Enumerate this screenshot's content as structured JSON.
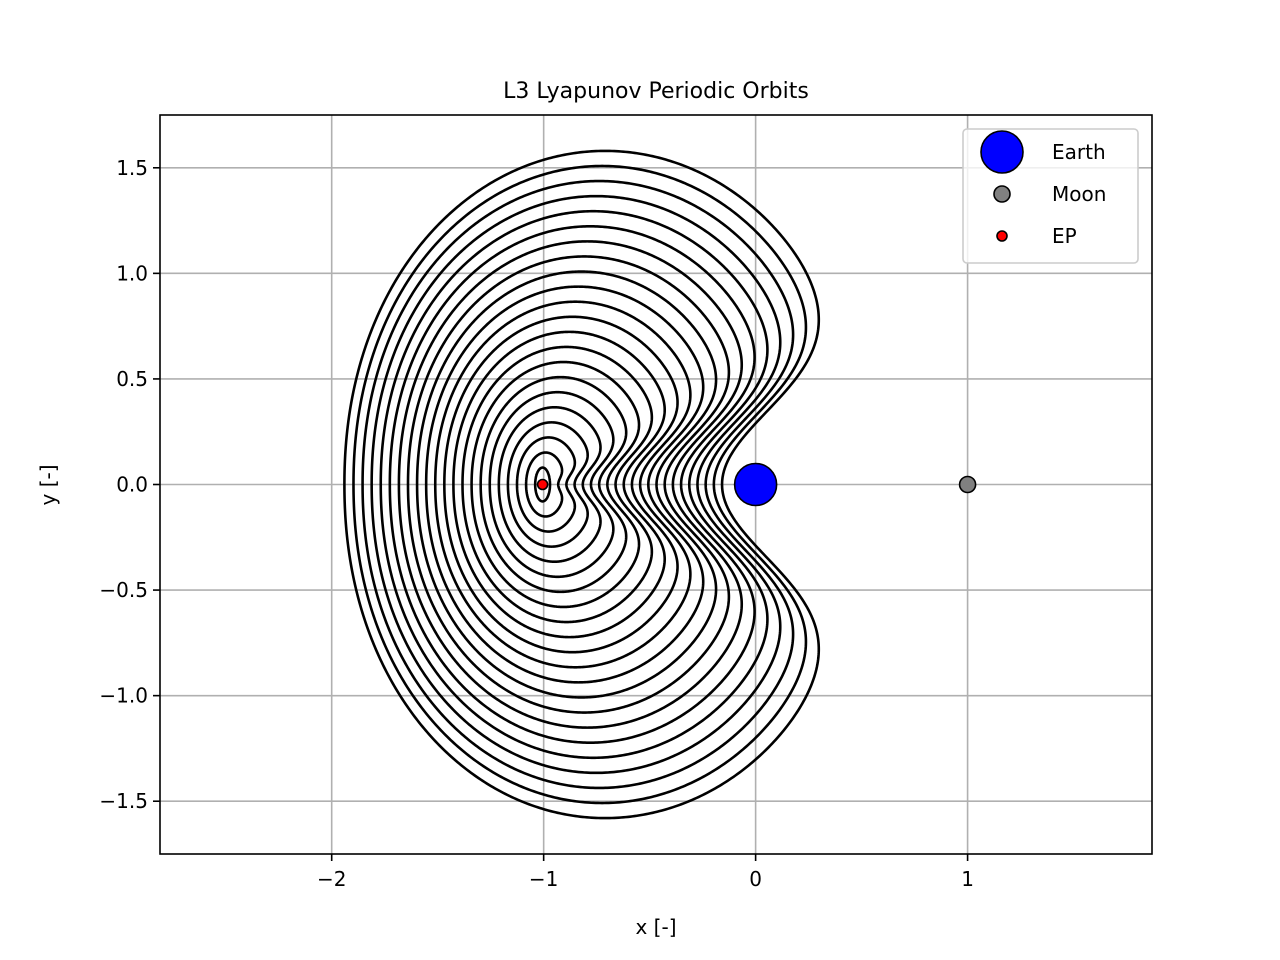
{
  "chart_data": {
    "type": "line",
    "title": "L3 Lyapunov Periodic Orbits",
    "xlabel": "x [-]",
    "ylabel": "y [-]",
    "xlim": [
      -2.81,
      1.87
    ],
    "ylim": [
      -1.75,
      1.75
    ],
    "xticks": [
      -2,
      -1,
      0,
      1
    ],
    "xtick_labels": [
      "−2",
      "−1",
      "0",
      "1"
    ],
    "yticks": [
      -1.5,
      -1.0,
      -0.5,
      0.0,
      0.5,
      1.0,
      1.5
    ],
    "ytick_labels": [
      "−1.5",
      "−1.0",
      "−0.5",
      "0.0",
      "0.5",
      "1.0",
      "1.5"
    ],
    "grid": true,
    "legend_position": "top-right",
    "orbit_family": {
      "count": 22,
      "color": "#000000",
      "equilibrium_point_x": -1.005,
      "largest_orbit": {
        "x_min": -1.94,
        "x_max": 0.52,
        "y_max": 1.58,
        "y_min": -1.58,
        "x_near_primary": -0.07
      },
      "smallest_orbit": {
        "x_min": -1.04,
        "x_max": -0.97,
        "y_max": 0.08
      }
    },
    "points": [
      {
        "name": "Earth",
        "x": 0.0,
        "y": 0.0,
        "color": "#0000ff",
        "size": "large"
      },
      {
        "name": "Moon",
        "x": 1.0,
        "y": 0.0,
        "color": "#808080",
        "size": "medium"
      },
      {
        "name": "EP",
        "x": -1.005,
        "y": 0.0,
        "color": "#ff0000",
        "size": "small"
      }
    ],
    "legend": [
      "Earth",
      "Moon",
      "EP"
    ]
  }
}
